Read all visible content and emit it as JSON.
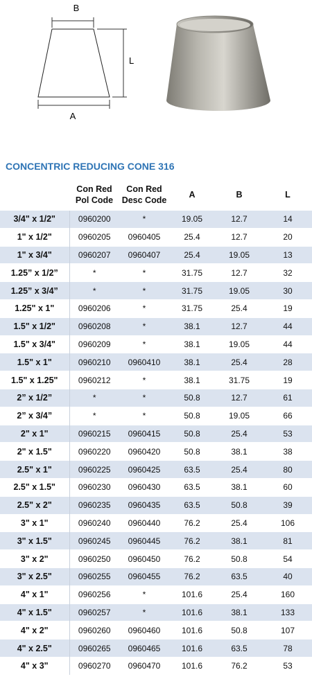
{
  "diagram": {
    "labels": [
      "B",
      "L",
      "A"
    ]
  },
  "title": "CONCENTRIC REDUCING CONE 316",
  "table": {
    "header": [
      [],
      [
        "Con Red",
        "Pol Code"
      ],
      [
        "Con Red",
        "Desc Code"
      ],
      [
        "A"
      ],
      [
        "B"
      ],
      [
        "L"
      ]
    ],
    "rows": [
      [
        "3/4\" x 1/2\"",
        "0960200",
        "*",
        "19.05",
        "12.7",
        "14"
      ],
      [
        "1\" x 1/2\"",
        "0960205",
        "0960405",
        "25.4",
        "12.7",
        "20"
      ],
      [
        "1\" x 3/4\"",
        "0960207",
        "0960407",
        "25.4",
        "19.05",
        "13"
      ],
      [
        "1.25” x 1/2”",
        "*",
        "*",
        "31.75",
        "12.7",
        "32"
      ],
      [
        "1.25” x 3/4”",
        "*",
        "*",
        "31.75",
        "19.05",
        "30"
      ],
      [
        "1.25\" x 1\"",
        "0960206",
        "*",
        "31.75",
        "25.4",
        "19"
      ],
      [
        "1.5\" x 1/2\"",
        "0960208",
        "*",
        "38.1",
        "12.7",
        "44"
      ],
      [
        "1.5\" x 3/4\"",
        "0960209",
        "*",
        "38.1",
        "19.05",
        "44"
      ],
      [
        "1.5\" x 1\"",
        "0960210",
        "0960410",
        "38.1",
        "25.4",
        "28"
      ],
      [
        "1.5\" x 1.25\"",
        "0960212",
        "*",
        "38.1",
        "31.75",
        "19"
      ],
      [
        "2” x 1/2”",
        "*",
        "*",
        "50.8",
        "12.7",
        "61"
      ],
      [
        "2” x 3/4”",
        "*",
        "*",
        "50.8",
        "19.05",
        "66"
      ],
      [
        "2\" x 1\"",
        "0960215",
        "0960415",
        "50.8",
        "25.4",
        "53"
      ],
      [
        "2\" x 1.5\"",
        "0960220",
        "0960420",
        "50.8",
        "38.1",
        "38"
      ],
      [
        "2.5\" x 1\"",
        "0960225",
        "0960425",
        "63.5",
        "25.4",
        "80"
      ],
      [
        "2.5\" x 1.5\"",
        "0960230",
        "0960430",
        "63.5",
        "38.1",
        "60"
      ],
      [
        "2.5\" x 2\"",
        "0960235",
        "0960435",
        "63.5",
        "50.8",
        "39"
      ],
      [
        "3\" x 1\"",
        "0960240",
        "0960440",
        "76.2",
        "25.4",
        "106"
      ],
      [
        "3\" x 1.5\"",
        "0960245",
        "0960445",
        "76.2",
        "38.1",
        "81"
      ],
      [
        "3\" x 2\"",
        "0960250",
        "0960450",
        "76.2",
        "50.8",
        "54"
      ],
      [
        "3\" x 2.5\"",
        "0960255",
        "0960455",
        "76.2",
        "63.5",
        "40"
      ],
      [
        "4\" x 1\"",
        "0960256",
        "*",
        "101.6",
        "25.4",
        "160"
      ],
      [
        "4\" x 1.5\"",
        "0960257",
        "*",
        "101.6",
        "38.1",
        "133"
      ],
      [
        "4\" x 2\"",
        "0960260",
        "0960460",
        "101.6",
        "50.8",
        "107"
      ],
      [
        "4\" x 2.5\"",
        "0960265",
        "0960465",
        "101.6",
        "63.5",
        "78"
      ],
      [
        "4\" x 3\"",
        "0960270",
        "0960470",
        "101.6",
        "76.2",
        "53"
      ]
    ]
  }
}
